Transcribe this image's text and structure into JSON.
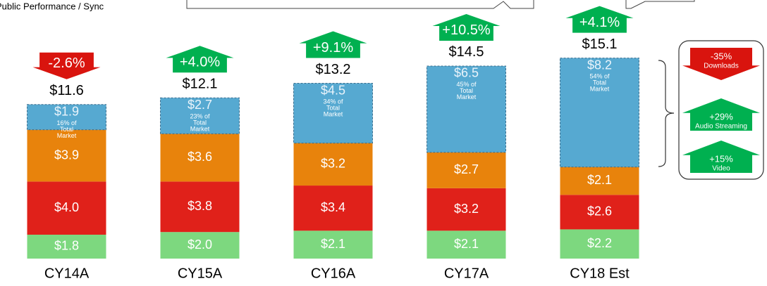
{
  "chart_data": {
    "type": "stacked_bar",
    "legend_text": "Public Performance / Sync",
    "categories": [
      "CY14A",
      "CY15A",
      "CY16A",
      "CY17A",
      "CY18 Est"
    ],
    "series": [
      {
        "name": "Public Performance / Sync",
        "color": "#7dd87f",
        "values": [
          1.8,
          2.0,
          2.1,
          2.1,
          2.2
        ],
        "value_labels": [
          "$1.8",
          "$2.0",
          "$2.1",
          "$2.1",
          "$2.2"
        ]
      },
      {
        "color": "#e0211a",
        "values": [
          4.0,
          3.8,
          3.4,
          3.2,
          2.6
        ],
        "value_labels": [
          "$4.0",
          "$3.8",
          "$3.4",
          "$3.2",
          "$2.6"
        ]
      },
      {
        "color": "#e8830c",
        "values": [
          3.9,
          3.6,
          3.2,
          2.7,
          2.1
        ],
        "value_labels": [
          "$3.9",
          "$3.6",
          "$3.2",
          "$2.7",
          "$2.1"
        ]
      },
      {
        "color": "#56a9d1",
        "dashed": true,
        "values": [
          1.9,
          2.7,
          4.5,
          6.5,
          8.2
        ],
        "value_labels": [
          "$1.9",
          "$2.7",
          "$4.5",
          "$6.5",
          "$8.2"
        ]
      }
    ],
    "share": {
      "values": [
        16,
        23,
        34,
        45,
        54
      ],
      "value_labels": [
        "16% of Total Market",
        "23% of Total Market",
        "34% of Total Market",
        "45% of Total Market",
        "54% of Total Market"
      ]
    },
    "totals": {
      "values": [
        11.6,
        12.1,
        13.2,
        14.5,
        15.1
      ],
      "value_labels": [
        "$11.6",
        "$12.1",
        "$13.2",
        "$14.5",
        "$15.1"
      ]
    },
    "growth": {
      "values": [
        -2.6,
        4.0,
        9.1,
        10.5,
        4.1
      ],
      "value_labels": [
        "-2.6%",
        "+4.0%",
        "+9.1%",
        "+10.5%",
        "+4.1%"
      ],
      "up_color": "#00b050",
      "down_color": "#d9140e"
    },
    "segment_growth": [
      {
        "value": -35,
        "label": "-35%",
        "name": "Downloads"
      },
      {
        "value": 29,
        "label": "+29%",
        "name": "Audio Streaming"
      },
      {
        "value": 15,
        "label": "+15%",
        "name": "Video"
      }
    ],
    "ylim": [
      0,
      20
    ]
  }
}
